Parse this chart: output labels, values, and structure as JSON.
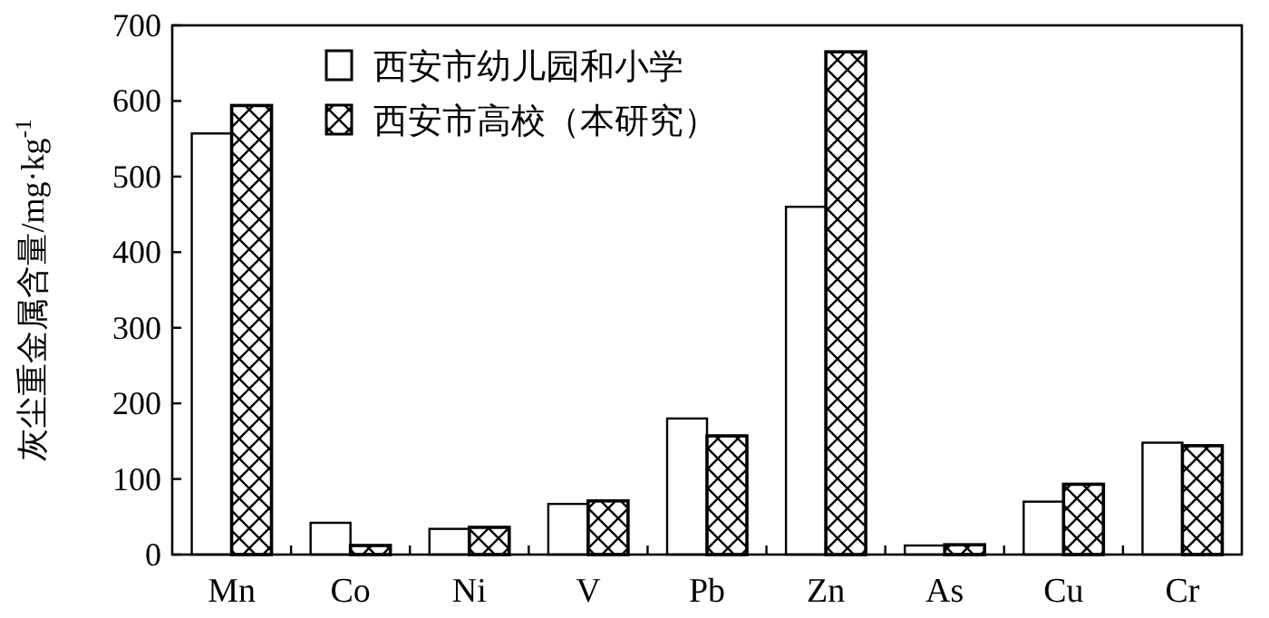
{
  "chart_data": {
    "type": "bar",
    "ylabel": "灰尘重金属含量/mg·kg$^{-1}$",
    "categories": [
      "Mn",
      "Co",
      "Ni",
      "V",
      "Pb",
      "Zn",
      "As",
      "Cu",
      "Cr"
    ],
    "series": [
      {
        "name": "西安市幼儿园和小学",
        "color": "#ffffff",
        "values": [
          557,
          42,
          34,
          67,
          180,
          460,
          12,
          70,
          148
        ]
      },
      {
        "name": "西安市高校（本研究）",
        "color": "#000000",
        "values": [
          594,
          12,
          36,
          71,
          157,
          665,
          13,
          93,
          144
        ]
      }
    ],
    "ylim": [
      0,
      700
    ],
    "yticks": [
      0,
      100,
      200,
      300,
      400,
      500,
      600,
      700
    ],
    "legend": "top left",
    "grid": false
  }
}
